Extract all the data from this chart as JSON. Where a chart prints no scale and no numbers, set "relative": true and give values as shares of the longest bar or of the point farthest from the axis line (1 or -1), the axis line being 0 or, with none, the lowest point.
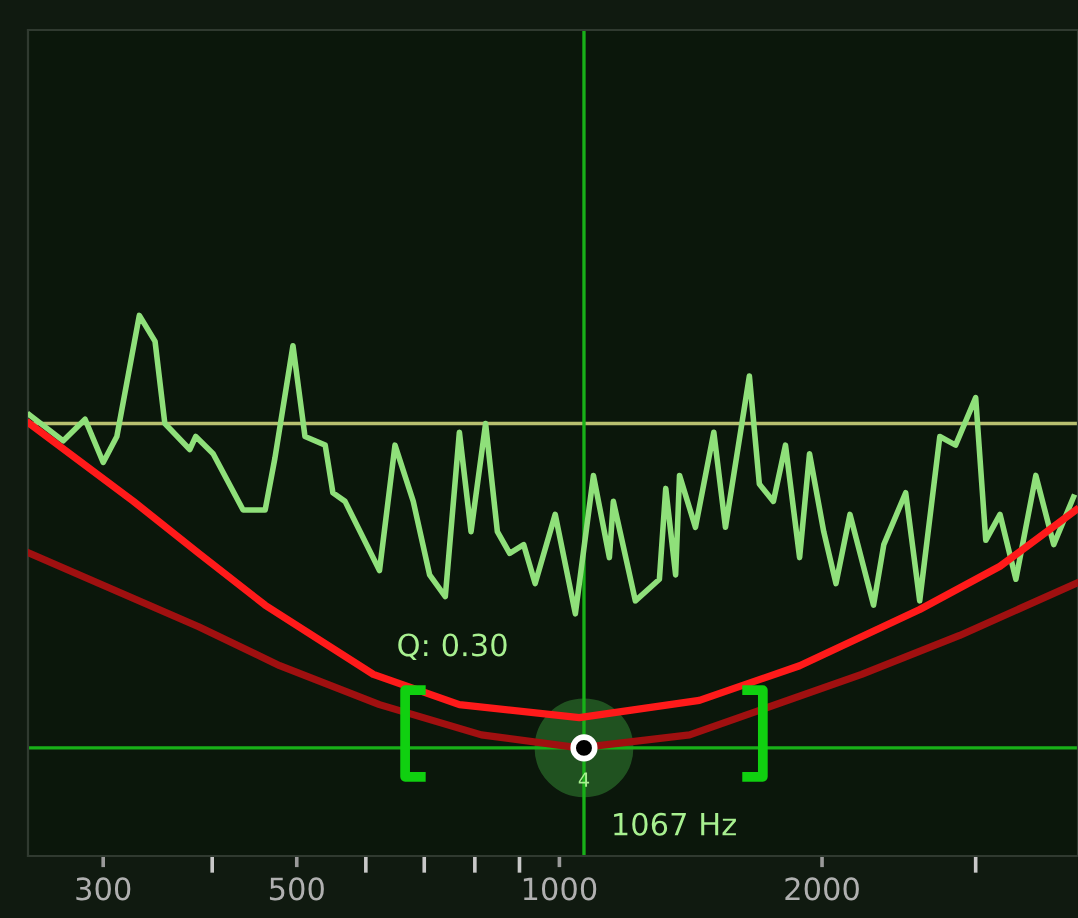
{
  "chart_data": {
    "type": "line",
    "relative": true,
    "log": "x",
    "grid": false,
    "legend": false,
    "marker": "none",
    "line_style": "solid",
    "tick_labels": "x",
    "xlim": [
      246,
      3930
    ],
    "xticks": [
      300,
      500,
      1000,
      2000
    ],
    "series": [
      {
        "color": "#8fe07a",
        "x": [
          247,
          270,
          286,
          300,
          311,
          330,
          344,
          353,
          377,
          383,
          401,
          434,
          460,
          472,
          495,
          511,
          539,
          550,
          568,
          622,
          648,
          680,
          710,
          740,
          768,
          792,
          823,
          849,
          877,
          910,
          938,
          989,
          1043,
          1094,
          1141,
          1153,
          1222,
          1302,
          1324,
          1359,
          1373,
          1432,
          1503,
          1550,
          1651,
          1695,
          1759,
          1816,
          1885,
          1935,
          2009,
          2075,
          2153,
          2291,
          2354,
          2494,
          2588,
          2729,
          2845,
          3000,
          3081,
          3199,
          3336,
          3516,
          3686,
          3884
        ],
        "values": [
          0.77,
          0.71,
          0.76,
          0.66,
          0.72,
          1.0,
          0.94,
          0.75,
          0.69,
          0.72,
          0.68,
          0.55,
          0.55,
          0.67,
          0.93,
          0.72,
          0.7,
          0.59,
          0.57,
          0.41,
          0.7,
          0.57,
          0.4,
          0.35,
          0.73,
          0.5,
          0.75,
          0.5,
          0.45,
          0.47,
          0.38,
          0.54,
          0.31,
          0.63,
          0.44,
          0.57,
          0.34,
          0.39,
          0.6,
          0.4,
          0.63,
          0.51,
          0.73,
          0.51,
          0.86,
          0.61,
          0.57,
          0.7,
          0.44,
          0.68,
          0.5,
          0.38,
          0.54,
          0.33,
          0.47,
          0.59,
          0.34,
          0.72,
          0.7,
          0.81,
          0.48,
          0.54,
          0.39,
          0.63,
          0.47,
          0.58
        ]
      },
      {
        "color": "#ff1a1a",
        "x": [
          247,
          325,
          386,
          460,
          612,
          768,
          1054,
          1447,
          1885,
          2588,
          3199,
          3908
        ],
        "values": [
          0.75,
          0.57,
          0.45,
          0.33,
          0.17,
          0.1,
          0.07,
          0.11,
          0.19,
          0.32,
          0.42,
          0.55
        ]
      },
      {
        "color": "#a01010",
        "x": [
          247,
          386,
          478,
          622,
          814,
          1054,
          1410,
          2220,
          2876,
          3908
        ],
        "values": [
          0.45,
          0.28,
          0.19,
          0.1,
          0.03,
          0.0,
          0.03,
          0.17,
          0.26,
          0.38
        ]
      },
      {
        "type": "scatter",
        "marker": "circle",
        "color": "#000000",
        "x": [
          1067
        ],
        "values": [
          0.0
        ]
      }
    ],
    "ref_lines": [
      {
        "axis": "y",
        "value": 0.75,
        "color": "#b8c070"
      },
      {
        "axis": "y",
        "value": 0.0,
        "color": "#18b018"
      },
      {
        "axis": "x",
        "value": 1067,
        "color": "#18b018"
      }
    ],
    "annotations": [
      "Q: 0.30",
      "1067 Hz",
      "4"
    ]
  }
}
